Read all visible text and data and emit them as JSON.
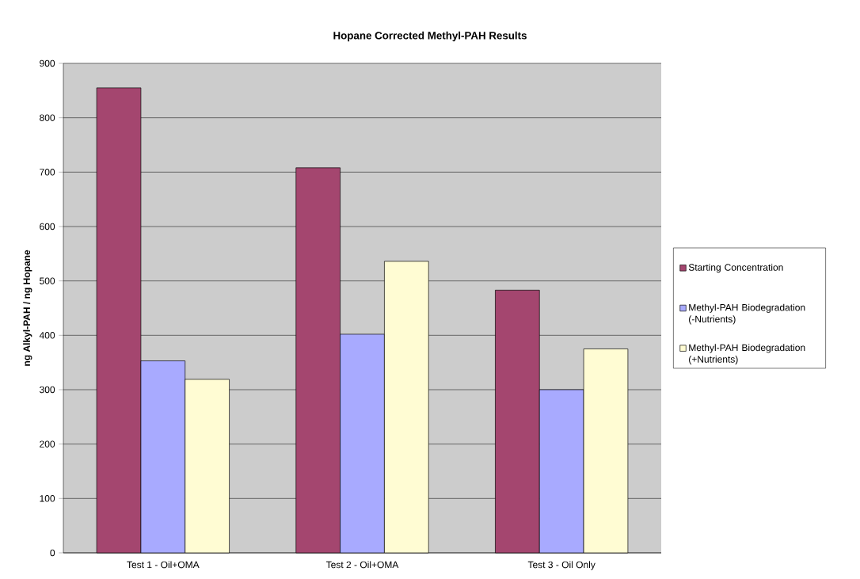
{
  "chart_data": {
    "type": "bar",
    "title": "Hopane Corrected Methyl-PAH Results",
    "ylabel": "ng Alkyl-PAH / ng Hopane",
    "categories": [
      "Test 1 - Oil+OMA",
      "Test 2 - Oil+OMA",
      "Test 3 - Oil Only"
    ],
    "series": [
      {
        "name": "Starting Concentration",
        "color": "#a4466f",
        "values": [
          855,
          708,
          483
        ]
      },
      {
        "name": "Methyl-PAH Biodegradation (-Nutrients)",
        "color": "#a8aaff",
        "values": [
          353,
          402,
          300
        ]
      },
      {
        "name": "Methyl-PAH Biodegradation (+Nutrients)",
        "color": "#fffcd3",
        "values": [
          319,
          536,
          375
        ]
      }
    ],
    "ylim": [
      0,
      900
    ],
    "yticks": [
      0,
      100,
      200,
      300,
      400,
      500,
      600,
      700,
      800,
      900
    ],
    "grid": "y",
    "legend": "right"
  }
}
